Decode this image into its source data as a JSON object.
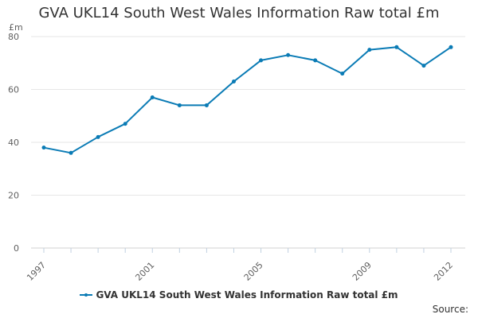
{
  "chart_data": {
    "type": "line",
    "title": "GVA UKL14 South West Wales Information Raw total £m",
    "y_unit": "£m",
    "xlabel": "",
    "ylabel": "£m",
    "x": [
      1997,
      1998,
      1999,
      2000,
      2001,
      2002,
      2003,
      2004,
      2005,
      2006,
      2007,
      2008,
      2009,
      2010,
      2011,
      2012
    ],
    "x_tick_labels": [
      "1997",
      "2001",
      "2005",
      "2009",
      "2012"
    ],
    "x_tick_values": [
      1997,
      2001,
      2005,
      2009,
      2012
    ],
    "y_ticks": [
      0,
      20,
      40,
      60,
      80
    ],
    "ylim": [
      0,
      80
    ],
    "xlim": [
      1997,
      2012
    ],
    "grid": true,
    "series": [
      {
        "name": "GVA UKL14 South West Wales Information Raw total £m",
        "color": "#0a7bb5",
        "values": [
          38,
          36,
          42,
          47,
          57,
          54,
          54,
          63,
          71,
          73,
          71,
          66,
          75,
          76,
          69,
          76
        ]
      }
    ],
    "legend": {
      "placement": "bottom-center",
      "label": "GVA UKL14 South West Wales Information Raw total £m"
    },
    "source_label": "Source:"
  }
}
